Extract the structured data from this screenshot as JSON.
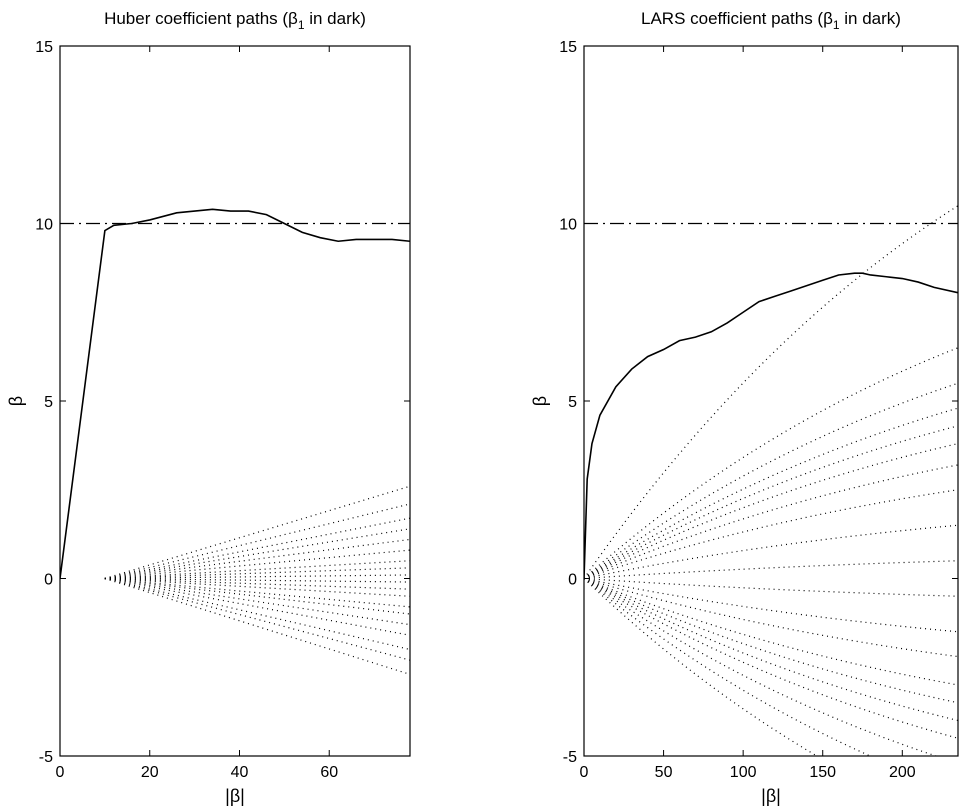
{
  "chart_data": [
    {
      "type": "line",
      "title": "Huber coefficient paths (β₁ in dark)",
      "title_main": "Huber coefficient paths (β",
      "title_sub": "1",
      "title_tail": " in dark)",
      "xlabel": "|β|",
      "ylabel": "β",
      "xlim": [
        0,
        78
      ],
      "ylim": [
        -5,
        15
      ],
      "xticks": [
        "0",
        "20",
        "40",
        "60"
      ],
      "xtick_values": [
        0,
        20,
        40,
        60
      ],
      "yticks": [
        "-5",
        "0",
        "5",
        "10",
        "15"
      ],
      "ytick_values": [
        -5,
        0,
        5,
        10,
        15
      ],
      "grid": false,
      "reference_line": {
        "y": 10,
        "style": "dash-dot"
      },
      "series": [
        {
          "style": "solid",
          "x": [
            0,
            10,
            12,
            16,
            20,
            26,
            30,
            34,
            38,
            42,
            46,
            50,
            54,
            58,
            62,
            66,
            70,
            74,
            78
          ],
          "y": [
            0,
            9.8,
            9.95,
            10.0,
            10.1,
            10.3,
            10.35,
            10.4,
            10.35,
            10.35,
            10.25,
            10.0,
            9.75,
            9.6,
            9.5,
            9.55,
            9.55,
            9.55,
            9.5
          ]
        }
      ],
      "dotted_paths": {
        "style": "dotted",
        "x_start": 10,
        "x_end": 78,
        "end_values": [
          2.6,
          2.1,
          1.7,
          1.4,
          1.1,
          0.8,
          0.5,
          0.3,
          0.1,
          -0.1,
          -0.3,
          -0.5,
          -0.8,
          -1.0,
          -1.3,
          -1.6,
          -2.0,
          -2.3,
          -2.7
        ]
      }
    },
    {
      "type": "line",
      "title": "LARS coefficient paths (β₁ in dark)",
      "title_main": "LARS coefficient paths (β",
      "title_sub": "1",
      "title_tail": " in dark)",
      "xlabel": "|β|",
      "ylabel": "β",
      "xlim": [
        0,
        235
      ],
      "ylim": [
        -5,
        15
      ],
      "xticks": [
        "0",
        "50",
        "100",
        "150",
        "200"
      ],
      "xtick_values": [
        0,
        50,
        100,
        150,
        200
      ],
      "yticks": [
        "-5",
        "0",
        "5",
        "10",
        "15"
      ],
      "ytick_values": [
        -5,
        0,
        5,
        10,
        15
      ],
      "grid": false,
      "reference_line": {
        "y": 10,
        "style": "dash-dot"
      },
      "series": [
        {
          "style": "solid",
          "x": [
            0,
            2,
            5,
            10,
            20,
            30,
            40,
            50,
            60,
            70,
            80,
            90,
            100,
            110,
            120,
            130,
            140,
            150,
            160,
            170,
            175,
            180,
            190,
            200,
            210,
            220,
            235
          ],
          "y": [
            0,
            2.8,
            3.8,
            4.6,
            5.4,
            5.9,
            6.25,
            6.45,
            6.7,
            6.8,
            6.95,
            7.2,
            7.5,
            7.8,
            7.95,
            8.1,
            8.25,
            8.4,
            8.55,
            8.6,
            8.6,
            8.55,
            8.5,
            8.45,
            8.35,
            8.2,
            8.05
          ]
        }
      ],
      "dotted_paths": {
        "style": "dotted",
        "x_start": 0,
        "x_end": 235,
        "end_values": [
          10.5,
          6.5,
          5.5,
          4.8,
          4.3,
          3.8,
          3.2,
          2.5,
          1.5,
          0.5,
          -0.5,
          -1.5,
          -2.2,
          -3.0,
          -3.5,
          -4.0,
          -4.5,
          -5.2,
          -6.0,
          -7.0
        ]
      }
    }
  ]
}
